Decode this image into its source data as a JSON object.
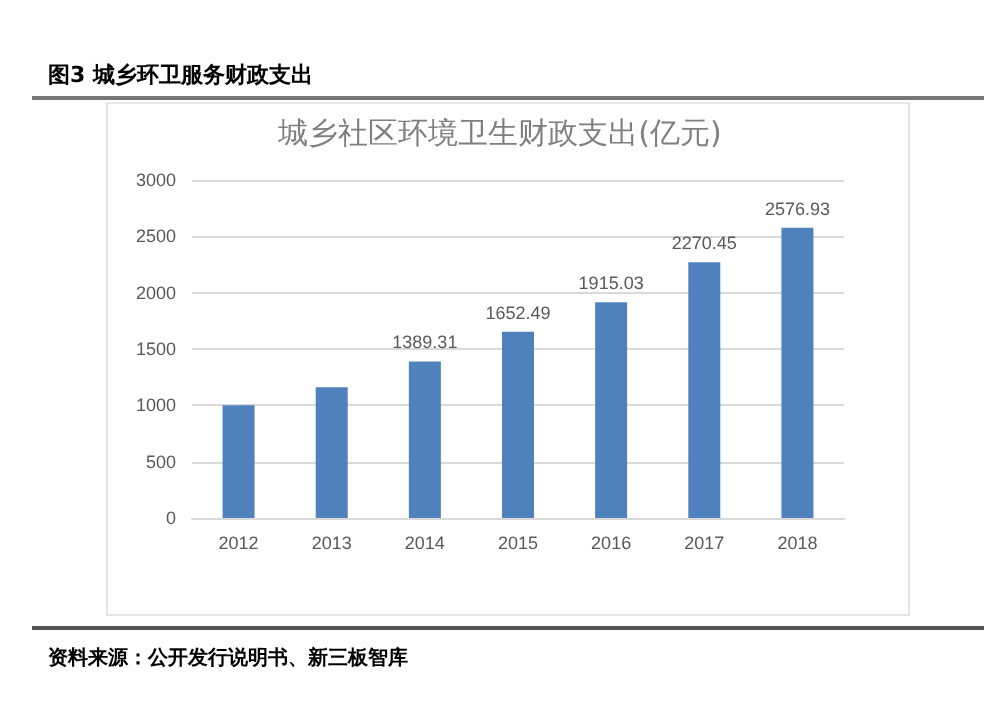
{
  "chart_data": {
    "type": "bar",
    "title": "图3 城乡环卫服务财政支出",
    "subtitle": "城乡社区环境卫生财政支出(亿元)",
    "categories": [
      "2012",
      "2013",
      "2014",
      "2015",
      "2016",
      "2017",
      "2018"
    ],
    "values": [
      1000,
      1160,
      1389.31,
      1652.49,
      1915.03,
      2270.45,
      2576.93
    ],
    "value_labels": [
      null,
      null,
      "1389.31",
      "1652.49",
      "1915.03",
      "2270.45",
      "2576.93"
    ],
    "color": "#4f81bd",
    "ylim": [
      0,
      3000
    ],
    "yticks": [
      0,
      500,
      1000,
      1500,
      2000,
      2500,
      3000
    ],
    "grid": "y",
    "annotations": [
      "资料来源：公开发行说明书、新三板智库"
    ]
  }
}
